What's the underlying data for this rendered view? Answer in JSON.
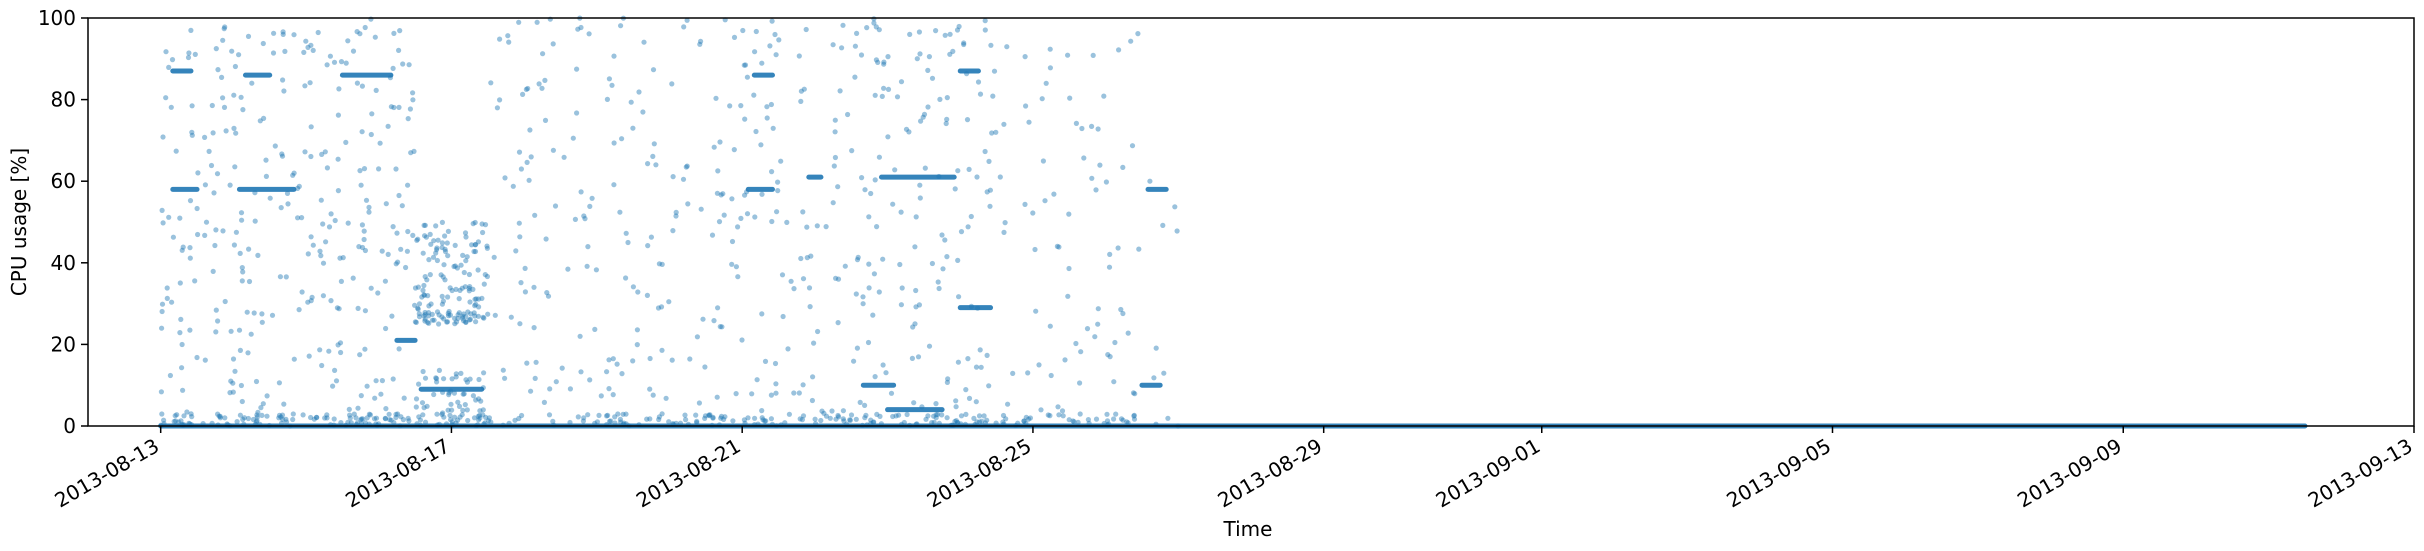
{
  "chart_data": {
    "type": "scatter",
    "xlabel": "Time",
    "ylabel": "CPU usage [%]",
    "ylim": [
      0,
      100
    ],
    "xlim": [
      "2013-08-12",
      "2013-09-13"
    ],
    "y_ticks": [
      0,
      20,
      40,
      60,
      80,
      100
    ],
    "x_ticks": [
      "2013-08-13",
      "2013-08-17",
      "2013-08-21",
      "2013-08-25",
      "2013-08-29",
      "2013-09-01",
      "2013-09-05",
      "2013-09-09",
      "2013-09-13"
    ],
    "grid": false,
    "legend": "none",
    "marker_color": "#1f77b4",
    "marker_alpha": 0.45,
    "dense_segments": [
      {
        "x_start": "2013-08-13 00:00",
        "x_end": "2013-09-11 12:00",
        "y": 0
      },
      {
        "x_start": "2013-08-13 04:00",
        "x_end": "2013-08-13 10:00",
        "y": 87
      },
      {
        "x_start": "2013-08-13 04:00",
        "x_end": "2013-08-13 12:00",
        "y": 58
      },
      {
        "x_start": "2013-08-14 04:00",
        "x_end": "2013-08-14 12:00",
        "y": 86
      },
      {
        "x_start": "2013-08-14 02:00",
        "x_end": "2013-08-14 20:00",
        "y": 58
      },
      {
        "x_start": "2013-08-15 12:00",
        "x_end": "2013-08-16 04:00",
        "y": 86
      },
      {
        "x_start": "2013-08-16 06:00",
        "x_end": "2013-08-16 12:00",
        "y": 21
      },
      {
        "x_start": "2013-08-16 14:00",
        "x_end": "2013-08-17 10:00",
        "y": 9
      },
      {
        "x_start": "2013-08-21 04:00",
        "x_end": "2013-08-21 10:00",
        "y": 86
      },
      {
        "x_start": "2013-08-21 02:00",
        "x_end": "2013-08-21 10:00",
        "y": 58
      },
      {
        "x_start": "2013-08-21 22:00",
        "x_end": "2013-08-22 02:00",
        "y": 61
      },
      {
        "x_start": "2013-08-22 16:00",
        "x_end": "2013-08-23 02:00",
        "y": 10
      },
      {
        "x_start": "2013-08-22 22:00",
        "x_end": "2013-08-23 22:00",
        "y": 61
      },
      {
        "x_start": "2013-08-23 00:00",
        "x_end": "2013-08-23 18:00",
        "y": 4
      },
      {
        "x_start": "2013-08-24 00:00",
        "x_end": "2013-08-24 06:00",
        "y": 87
      },
      {
        "x_start": "2013-08-24 00:00",
        "x_end": "2013-08-24 10:00",
        "y": 29
      },
      {
        "x_start": "2013-08-26 12:00",
        "x_end": "2013-08-26 18:00",
        "y": 10
      },
      {
        "x_start": "2013-08-26 14:00",
        "x_end": "2013-08-26 20:00",
        "y": 58
      }
    ],
    "scatter_regions": [
      {
        "x_start": "2013-08-13 00:00",
        "x_end": "2013-08-16 12:00",
        "y_min": 0,
        "y_max": 100,
        "count": 400
      },
      {
        "x_start": "2013-08-16 12:00",
        "x_end": "2013-08-17 12:00",
        "y_min": 25,
        "y_max": 50,
        "count": 150
      },
      {
        "x_start": "2013-08-16 12:00",
        "x_end": "2013-08-17 12:00",
        "y_min": 0,
        "y_max": 14,
        "count": 80
      },
      {
        "x_start": "2013-08-17 12:00",
        "x_end": "2013-08-22 12:00",
        "y_min": 0,
        "y_max": 100,
        "count": 360
      },
      {
        "x_start": "2013-08-22 12:00",
        "x_end": "2013-08-24 12:00",
        "y_min": 0,
        "y_max": 100,
        "count": 200
      },
      {
        "x_start": "2013-08-24 12:00",
        "x_end": "2013-08-26 12:00",
        "y_min": 0,
        "y_max": 100,
        "count": 100
      },
      {
        "x_start": "2013-08-26 00:00",
        "x_end": "2013-08-27 00:00",
        "y_min": 0,
        "y_max": 65,
        "count": 20
      }
    ]
  }
}
